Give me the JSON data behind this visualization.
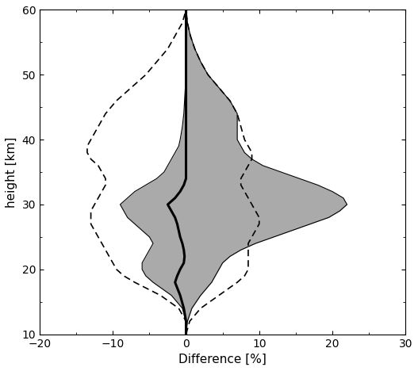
{
  "heights": [
    10,
    12,
    14,
    16,
    18,
    19,
    20,
    21,
    22,
    23,
    24,
    25,
    26,
    27,
    28,
    29,
    30,
    31,
    32,
    33,
    34,
    35,
    36,
    37,
    38,
    39,
    40,
    42,
    44,
    46,
    48,
    50,
    52,
    54,
    56,
    58,
    60
  ],
  "mean_diff": [
    0.0,
    0.0,
    -0.3,
    -0.8,
    -1.5,
    -1.2,
    -0.8,
    -0.3,
    -0.2,
    -0.3,
    -0.5,
    -0.8,
    -1.0,
    -1.2,
    -1.5,
    -2.0,
    -2.5,
    -1.5,
    -0.8,
    -0.3,
    0.0,
    0.0,
    0.0,
    0.0,
    0.0,
    0.0,
    0.0,
    0.0,
    0.0,
    0.0,
    0.0,
    0.0,
    0.0,
    0.0,
    0.0,
    0.0,
    0.0
  ],
  "std_lower": [
    0.0,
    0.0,
    -0.5,
    -2.0,
    -4.5,
    -5.5,
    -6.0,
    -6.0,
    -5.5,
    -5.0,
    -4.5,
    -5.0,
    -6.0,
    -7.0,
    -8.0,
    -8.5,
    -9.0,
    -8.0,
    -7.0,
    -5.5,
    -4.0,
    -3.0,
    -2.5,
    -2.0,
    -1.5,
    -1.0,
    -0.8,
    -0.5,
    -0.3,
    -0.2,
    -0.1,
    -0.1,
    0.0,
    0.0,
    0.0,
    0.0,
    0.0
  ],
  "std_upper": [
    0.0,
    0.2,
    0.8,
    2.0,
    3.5,
    4.0,
    4.5,
    5.0,
    6.0,
    7.5,
    9.5,
    12.0,
    14.5,
    17.0,
    19.5,
    21.0,
    22.0,
    21.5,
    20.0,
    18.0,
    15.5,
    13.0,
    10.5,
    9.0,
    8.0,
    7.5,
    7.0,
    7.0,
    7.0,
    6.0,
    4.5,
    3.0,
    2.0,
    1.2,
    0.6,
    0.2,
    0.0
  ],
  "dashed_lower": [
    0.0,
    0.0,
    -1.0,
    -3.5,
    -7.0,
    -8.5,
    -9.5,
    -10.0,
    -10.5,
    -11.0,
    -11.5,
    -12.0,
    -12.5,
    -13.0,
    -13.0,
    -13.0,
    -12.5,
    -12.0,
    -11.5,
    -11.0,
    -11.0,
    -11.5,
    -12.0,
    -13.0,
    -13.5,
    -13.5,
    -13.0,
    -12.0,
    -11.0,
    -9.5,
    -7.5,
    -5.5,
    -4.0,
    -2.5,
    -1.5,
    -0.5,
    0.0
  ],
  "dashed_upper": [
    0.0,
    0.5,
    2.0,
    4.5,
    7.0,
    8.0,
    8.5,
    8.5,
    8.5,
    8.5,
    8.5,
    9.0,
    9.5,
    10.0,
    10.0,
    9.5,
    9.0,
    8.5,
    8.0,
    7.5,
    7.5,
    8.0,
    8.5,
    9.0,
    9.0,
    8.5,
    8.0,
    7.5,
    7.0,
    6.0,
    4.5,
    3.0,
    2.0,
    1.2,
    0.6,
    0.2,
    0.0
  ],
  "xlim": [
    -20,
    30
  ],
  "ylim": [
    10,
    60
  ],
  "xticks": [
    -20,
    -10,
    0,
    10,
    20,
    30
  ],
  "yticks": [
    10,
    20,
    30,
    40,
    50,
    60
  ],
  "xlabel": "Difference [%]",
  "ylabel": "height [km]",
  "shade_color": "#aaaaaa",
  "shade_alpha": 1.0,
  "mean_color": "#000000",
  "dashed_color": "#000000"
}
